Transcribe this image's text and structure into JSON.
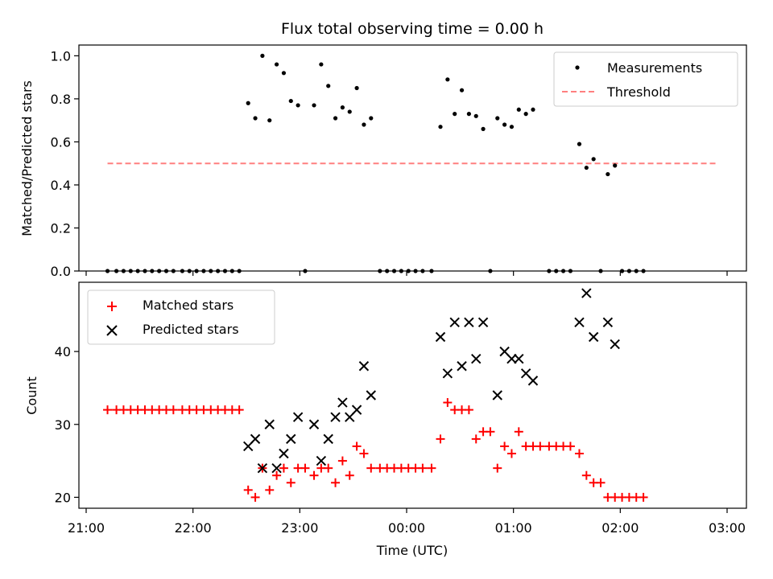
{
  "chart_data": [
    {
      "type": "scatter",
      "title": "Flux total observing time = 0.00 h",
      "xlabel": "",
      "ylabel": "Matched/Predicted stars",
      "ylim": [
        0,
        1.05
      ],
      "xlim": [
        "21:00",
        "03:00"
      ],
      "yticks": [
        "0.0",
        "0.2",
        "0.4",
        "0.6",
        "0.8",
        "1.0"
      ],
      "legend_position": "top-right",
      "series": [
        {
          "name": "Measurements",
          "marker": "dot",
          "color": "#000000",
          "points": [
            [
              "21:12",
              0
            ],
            [
              "21:17",
              0
            ],
            [
              "21:21",
              0
            ],
            [
              "21:25",
              0
            ],
            [
              "21:29",
              0
            ],
            [
              "21:33",
              0
            ],
            [
              "21:37",
              0
            ],
            [
              "21:41",
              0
            ],
            [
              "21:45",
              0
            ],
            [
              "21:49",
              0
            ],
            [
              "21:54",
              0
            ],
            [
              "21:58",
              0
            ],
            [
              "22:02",
              0
            ],
            [
              "22:06",
              0
            ],
            [
              "22:10",
              0
            ],
            [
              "22:14",
              0
            ],
            [
              "22:18",
              0
            ],
            [
              "22:22",
              0
            ],
            [
              "22:26",
              0
            ],
            [
              "22:31",
              0.78
            ],
            [
              "22:35",
              0.71
            ],
            [
              "22:39",
              1.0
            ],
            [
              "22:43",
              0.7
            ],
            [
              "22:47",
              0.96
            ],
            [
              "22:51",
              0.92
            ],
            [
              "22:55",
              0.79
            ],
            [
              "22:59",
              0.77
            ],
            [
              "23:03",
              0
            ],
            [
              "23:08",
              0.77
            ],
            [
              "23:12",
              0.96
            ],
            [
              "23:16",
              0.86
            ],
            [
              "23:20",
              0.71
            ],
            [
              "23:24",
              0.76
            ],
            [
              "23:28",
              0.74
            ],
            [
              "23:32",
              0.85
            ],
            [
              "23:36",
              0.68
            ],
            [
              "23:40",
              0.71
            ],
            [
              "23:45",
              0
            ],
            [
              "23:49",
              0
            ],
            [
              "23:53",
              0
            ],
            [
              "23:57",
              0
            ],
            [
              "00:01",
              0
            ],
            [
              "00:05",
              0
            ],
            [
              "00:09",
              0
            ],
            [
              "00:14",
              0
            ],
            [
              "00:19",
              0.67
            ],
            [
              "00:23",
              0.89
            ],
            [
              "00:27",
              0.73
            ],
            [
              "00:31",
              0.84
            ],
            [
              "00:35",
              0.73
            ],
            [
              "00:39",
              0.72
            ],
            [
              "00:43",
              0.66
            ],
            [
              "00:47",
              0
            ],
            [
              "00:51",
              0.71
            ],
            [
              "00:55",
              0.68
            ],
            [
              "00:59",
              0.67
            ],
            [
              "01:03",
              0.75
            ],
            [
              "01:07",
              0.73
            ],
            [
              "01:11",
              0.75
            ],
            [
              "01:20",
              0
            ],
            [
              "01:24",
              0
            ],
            [
              "01:28",
              0
            ],
            [
              "01:32",
              0
            ],
            [
              "01:37",
              0.59
            ],
            [
              "01:41",
              0.48
            ],
            [
              "01:45",
              0.52
            ],
            [
              "01:49",
              0
            ],
            [
              "01:53",
              0.45
            ],
            [
              "01:57",
              0.49
            ],
            [
              "02:01",
              0
            ],
            [
              "02:05",
              0
            ],
            [
              "02:09",
              0
            ],
            [
              "02:13",
              0
            ]
          ]
        },
        {
          "name": "Threshold",
          "kind": "line",
          "style": "dashed",
          "color": "#ff7f7f",
          "x": [
            "21:12",
            "02:54"
          ],
          "y": [
            0.5,
            0.5
          ]
        }
      ]
    },
    {
      "type": "scatter",
      "title": "",
      "xlabel": "Time (UTC)",
      "ylabel": "Count",
      "ylim": [
        18.5,
        49.5
      ],
      "xlim": [
        "21:00",
        "03:00"
      ],
      "xticks": [
        "21:00",
        "22:00",
        "23:00",
        "00:00",
        "01:00",
        "02:00",
        "03:00"
      ],
      "yticks": [
        "20",
        "30",
        "40"
      ],
      "legend_position": "top-left",
      "series": [
        {
          "name": "Matched stars",
          "marker": "plus",
          "color": "#ff0000",
          "points": [
            [
              "21:12",
              32
            ],
            [
              "21:17",
              32
            ],
            [
              "21:21",
              32
            ],
            [
              "21:25",
              32
            ],
            [
              "21:29",
              32
            ],
            [
              "21:33",
              32
            ],
            [
              "21:37",
              32
            ],
            [
              "21:41",
              32
            ],
            [
              "21:45",
              32
            ],
            [
              "21:49",
              32
            ],
            [
              "21:54",
              32
            ],
            [
              "21:58",
              32
            ],
            [
              "22:02",
              32
            ],
            [
              "22:06",
              32
            ],
            [
              "22:10",
              32
            ],
            [
              "22:14",
              32
            ],
            [
              "22:18",
              32
            ],
            [
              "22:22",
              32
            ],
            [
              "22:26",
              32
            ],
            [
              "22:31",
              21
            ],
            [
              "22:35",
              20
            ],
            [
              "22:39",
              24
            ],
            [
              "22:43",
              21
            ],
            [
              "22:47",
              23
            ],
            [
              "22:51",
              24
            ],
            [
              "22:55",
              22
            ],
            [
              "22:59",
              24
            ],
            [
              "23:03",
              24
            ],
            [
              "23:08",
              23
            ],
            [
              "23:12",
              24
            ],
            [
              "23:16",
              24
            ],
            [
              "23:20",
              22
            ],
            [
              "23:24",
              25
            ],
            [
              "23:28",
              23
            ],
            [
              "23:32",
              27
            ],
            [
              "23:36",
              26
            ],
            [
              "23:40",
              24
            ],
            [
              "23:45",
              24
            ],
            [
              "23:49",
              24
            ],
            [
              "23:53",
              24
            ],
            [
              "23:57",
              24
            ],
            [
              "00:01",
              24
            ],
            [
              "00:05",
              24
            ],
            [
              "00:09",
              24
            ],
            [
              "00:14",
              24
            ],
            [
              "00:19",
              28
            ],
            [
              "00:23",
              33
            ],
            [
              "00:27",
              32
            ],
            [
              "00:31",
              32
            ],
            [
              "00:35",
              32
            ],
            [
              "00:39",
              28
            ],
            [
              "00:43",
              29
            ],
            [
              "00:47",
              29
            ],
            [
              "00:51",
              24
            ],
            [
              "00:55",
              27
            ],
            [
              "00:59",
              26
            ],
            [
              "01:03",
              29
            ],
            [
              "01:07",
              27
            ],
            [
              "01:11",
              27
            ],
            [
              "01:15",
              27
            ],
            [
              "01:20",
              27
            ],
            [
              "01:24",
              27
            ],
            [
              "01:28",
              27
            ],
            [
              "01:32",
              27
            ],
            [
              "01:37",
              26
            ],
            [
              "01:41",
              23
            ],
            [
              "01:45",
              22
            ],
            [
              "01:49",
              22
            ],
            [
              "01:53",
              20
            ],
            [
              "01:57",
              20
            ],
            [
              "02:01",
              20
            ],
            [
              "02:05",
              20
            ],
            [
              "02:09",
              20
            ],
            [
              "02:13",
              20
            ]
          ]
        },
        {
          "name": "Predicted stars",
          "marker": "x",
          "color": "#000000",
          "points": [
            [
              "22:31",
              27
            ],
            [
              "22:35",
              28
            ],
            [
              "22:39",
              24
            ],
            [
              "22:43",
              30
            ],
            [
              "22:47",
              24
            ],
            [
              "22:51",
              26
            ],
            [
              "22:55",
              28
            ],
            [
              "22:59",
              31
            ],
            [
              "23:08",
              30
            ],
            [
              "23:12",
              25
            ],
            [
              "23:16",
              28
            ],
            [
              "23:20",
              31
            ],
            [
              "23:24",
              33
            ],
            [
              "23:28",
              31
            ],
            [
              "23:32",
              32
            ],
            [
              "23:36",
              38
            ],
            [
              "23:40",
              34
            ],
            [
              "00:19",
              42
            ],
            [
              "00:23",
              37
            ],
            [
              "00:27",
              44
            ],
            [
              "00:31",
              38
            ],
            [
              "00:35",
              44
            ],
            [
              "00:39",
              39
            ],
            [
              "00:43",
              44
            ],
            [
              "00:51",
              34
            ],
            [
              "00:55",
              40
            ],
            [
              "00:59",
              39
            ],
            [
              "01:03",
              39
            ],
            [
              "01:07",
              37
            ],
            [
              "01:11",
              36
            ],
            [
              "01:37",
              44
            ],
            [
              "01:41",
              48
            ],
            [
              "01:45",
              42
            ],
            [
              "01:53",
              44
            ],
            [
              "01:57",
              41
            ]
          ]
        }
      ]
    }
  ]
}
